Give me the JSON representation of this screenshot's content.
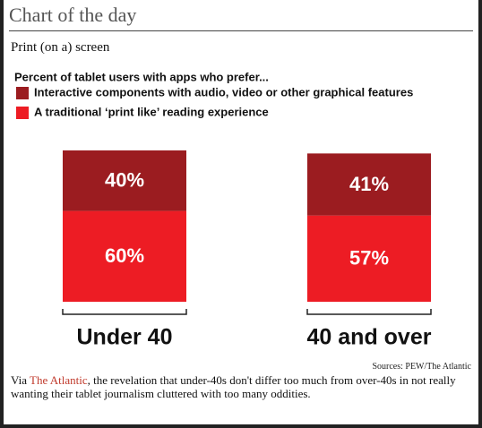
{
  "header": {
    "title": "Chart of the day",
    "subtitle": "Print (on a) screen"
  },
  "chart_data": {
    "type": "bar",
    "stacked": true,
    "title": "Percent of tablet users with apps who prefer...",
    "categories": [
      "Under 40",
      "40 and over"
    ],
    "series": [
      {
        "name": "Interactive components with audio, video or other graphical features",
        "color": "#9b1c20",
        "values": [
          40,
          41
        ],
        "value_labels": [
          "40%",
          "41%"
        ]
      },
      {
        "name": "A traditional ‘print like’ reading experience",
        "color": "#ed1c24",
        "values": [
          60,
          57
        ],
        "value_labels": [
          "60%",
          "57%"
        ]
      }
    ]
  },
  "source": "Sources: PEW/The Atlantic",
  "caption": {
    "prefix": "Via",
    "link": "The Atlantic",
    "rest": ", the revelation that under-40s don't differ too much from over-40s in not really wanting their tablet journalism cluttered with too many oddities."
  }
}
